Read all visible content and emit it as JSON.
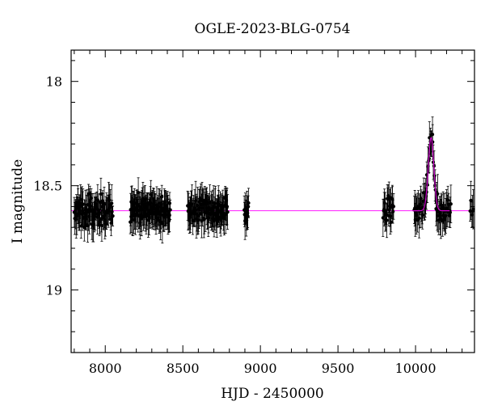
{
  "chart_data": {
    "type": "scatter",
    "title": "OGLE-2023-BLG-0754",
    "xlabel": "HJD - 2450000",
    "ylabel": "I magnitude",
    "xlim": [
      7780,
      10380
    ],
    "ylim": [
      19.3,
      17.85
    ],
    "y_inverted": true,
    "xticks": [
      8000,
      8500,
      9000,
      9500,
      10000
    ],
    "xtick_labels": [
      "8000",
      "8500",
      "9000",
      "9500",
      "10000"
    ],
    "yticks": [
      18,
      18.5,
      19
    ],
    "ytick_labels": [
      "18",
      "18.5",
      "19"
    ],
    "baseline_mag": 18.62,
    "peak": {
      "t0": 10100,
      "peak_mag": 18.27,
      "width_days": 30
    },
    "seasons": [
      {
        "start": 7800,
        "end": 8050,
        "n": 95
      },
      {
        "start": 8160,
        "end": 8420,
        "n": 110
      },
      {
        "start": 8530,
        "end": 8790,
        "n": 100
      },
      {
        "start": 8895,
        "end": 8925,
        "n": 14
      },
      {
        "start": 9790,
        "end": 9860,
        "n": 24
      },
      {
        "start": 9990,
        "end": 10230,
        "n": 70
      },
      {
        "start": 10350,
        "end": 10375,
        "n": 5
      }
    ],
    "scatter_sigma": 0.055,
    "errorbar_typical": 0.07,
    "grid": false,
    "legend": "none",
    "colors": {
      "points": "#000000",
      "model": "#cc00cc",
      "baseline": "#ff33ff"
    }
  }
}
